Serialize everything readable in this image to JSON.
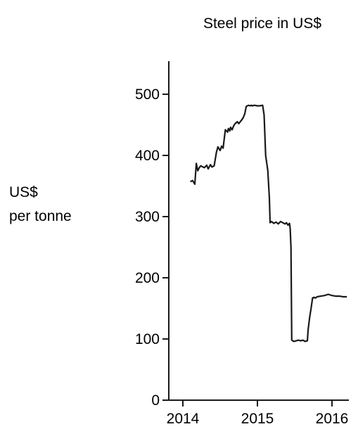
{
  "chart_data": {
    "type": "line",
    "title": "Steel price in US$",
    "ylabel": [
      "US$",
      "per tonne"
    ],
    "xlabel": "",
    "xlim": [
      2013.9,
      2016.2
    ],
    "ylim": [
      0,
      550
    ],
    "x_ticks": [
      2014,
      2015,
      2016
    ],
    "x_tick_labels": [
      "2014",
      "2015",
      "2016"
    ],
    "y_ticks": [
      0,
      100,
      200,
      300,
      400,
      500
    ],
    "y_tick_labels": [
      "0",
      "100",
      "200",
      "300",
      "400",
      "500"
    ],
    "grid": false,
    "legend": "none",
    "line_color": "#1a1a1a",
    "series": [
      {
        "x": [
          2014.1,
          2014.13,
          2014.16,
          2014.18,
          2014.2,
          2014.22,
          2014.24,
          2014.27,
          2014.29,
          2014.32,
          2014.34,
          2014.37,
          2014.39,
          2014.42,
          2014.45,
          2014.47,
          2014.5,
          2014.52,
          2014.54,
          2014.57,
          2014.6,
          2014.61,
          2014.63,
          2014.64,
          2014.66,
          2014.68,
          2014.7,
          2014.73,
          2014.75,
          2014.77,
          2014.79,
          2014.81,
          2014.83,
          2014.85,
          2014.88,
          2014.9,
          2014.92,
          2014.93,
          2014.96,
          2015.0,
          2015.03,
          2015.07,
          2015.09,
          2015.11,
          2015.14,
          2015.16,
          2015.17,
          2015.19,
          2015.22,
          2015.25,
          2015.28,
          2015.31,
          2015.34,
          2015.37,
          2015.39,
          2015.41,
          2015.43,
          2015.44,
          2015.45,
          2015.46,
          2015.49,
          2015.52,
          2015.55,
          2015.58,
          2015.61,
          2015.64,
          2015.67,
          2015.68,
          2015.7,
          2015.72,
          2015.74,
          2015.76,
          2015.78,
          2015.8,
          2015.85,
          2015.9,
          2015.95,
          2016.0,
          2016.05,
          2016.1,
          2016.15,
          2016.2
        ],
        "y": [
          357,
          359,
          353,
          387,
          375,
          380,
          383,
          381,
          380,
          384,
          378,
          385,
          381,
          383,
          405,
          414,
          408,
          415,
          412,
          442,
          438,
          444,
          440,
          446,
          442,
          448,
          452,
          455,
          452,
          455,
          458,
          462,
          468,
          480,
          482,
          481,
          482,
          481,
          482,
          481,
          481,
          482,
          466,
          400,
          375,
          330,
          290,
          292,
          289,
          291,
          288,
          292,
          290,
          288,
          290,
          286,
          289,
          280,
          250,
          98,
          96,
          97,
          98,
          97,
          98,
          96,
          97,
          115,
          135,
          150,
          167,
          168,
          167,
          169,
          170,
          171,
          173,
          171,
          170,
          170,
          169,
          169
        ]
      }
    ]
  }
}
